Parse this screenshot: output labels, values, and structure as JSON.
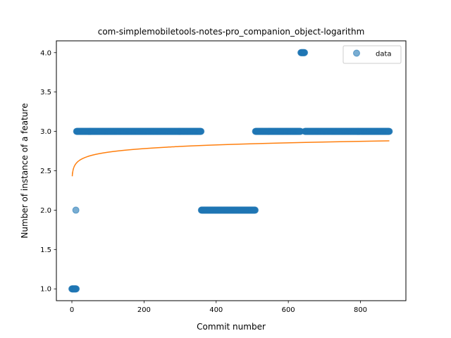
{
  "chart_data": {
    "type": "scatter",
    "title": "com-simplemobiletools-notes-pro_companion_object-logarithm",
    "xlabel": "Commit number",
    "ylabel": "Number of instance of a feature",
    "xlim": [
      -43,
      926
    ],
    "ylim": [
      0.85,
      4.15
    ],
    "xticks": [
      0,
      200,
      400,
      600,
      800
    ],
    "yticks": [
      1.0,
      1.5,
      2.0,
      2.5,
      3.0,
      3.5,
      4.0
    ],
    "legend": {
      "position": "top-right",
      "entries": [
        "data"
      ]
    },
    "colors": {
      "data": "#1f77b4",
      "fit": "#ff7f0e"
    },
    "series": [
      {
        "name": "data",
        "kind": "scatter",
        "segments": [
          {
            "x_start": 0,
            "x_end": 12,
            "y": 1.0
          },
          {
            "x_start": 11,
            "x_end": 11,
            "y": 2.0
          },
          {
            "x_start": 13,
            "x_end": 358,
            "y": 3.0
          },
          {
            "x_start": 359,
            "x_end": 508,
            "y": 2.0
          },
          {
            "x_start": 509,
            "x_end": 634,
            "y": 3.0
          },
          {
            "x_start": 635,
            "x_end": 645,
            "y": 4.0
          },
          {
            "x_start": 646,
            "x_end": 880,
            "y": 3.0
          }
        ]
      },
      {
        "kind": "line",
        "fit": "logarithmic",
        "x_range": [
          1,
          880
        ],
        "y_at_start": 2.43,
        "y_at_end": 2.88
      }
    ]
  }
}
